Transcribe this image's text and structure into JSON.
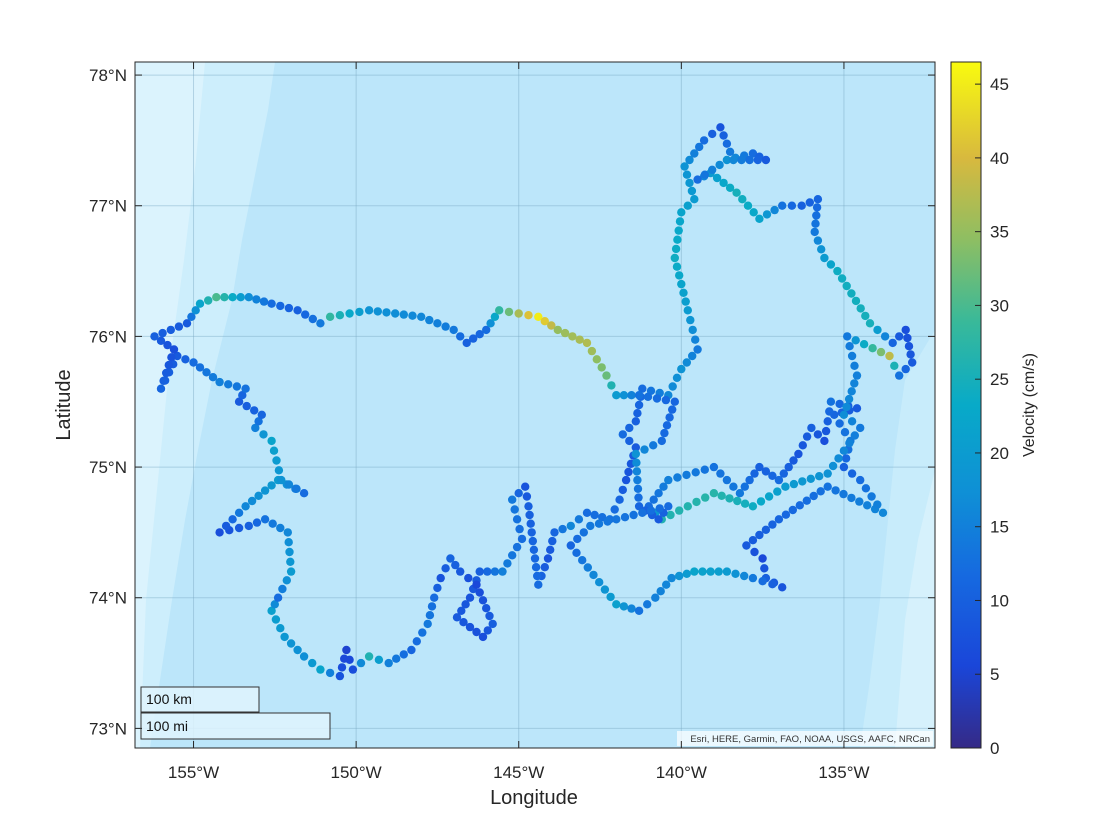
{
  "chart_data": {
    "type": "scatter",
    "map_type": "geoscatter",
    "xlabel": "Longitude",
    "ylabel": "Latitude",
    "xlim": [
      -156.8,
      -132.2
    ],
    "ylim": [
      72.85,
      78.1
    ],
    "x_ticks": [
      {
        "value": -155,
        "label": "155°W"
      },
      {
        "value": -150,
        "label": "150°W"
      },
      {
        "value": -145,
        "label": "145°W"
      },
      {
        "value": -140,
        "label": "140°W"
      },
      {
        "value": -135,
        "label": "135°W"
      }
    ],
    "y_ticks": [
      {
        "value": 73,
        "label": "73°N"
      },
      {
        "value": 74,
        "label": "74°N"
      },
      {
        "value": 75,
        "label": "75°N"
      },
      {
        "value": 76,
        "label": "76°N"
      },
      {
        "value": 77,
        "label": "77°N"
      },
      {
        "value": 78,
        "label": "78°N"
      }
    ],
    "grid": true,
    "colorbar": {
      "label": "Velocity (cm/s)",
      "limits": [
        0,
        46.5
      ],
      "colormap": "parula",
      "ticks": [
        0,
        5,
        10,
        15,
        20,
        25,
        30,
        35,
        40,
        45
      ]
    },
    "basemap_attribution": "Esri, HERE, Garmin, FAO, NOAA, USGS, AAFC, NRCan",
    "scale_bar": {
      "km_label": "100 km",
      "mi_label": "100 mi"
    },
    "track_waypoints": [
      [
        -136.9,
        74.08,
        8
      ],
      [
        -137.4,
        74.15,
        10
      ],
      [
        -137.5,
        74.3,
        6
      ],
      [
        -138.0,
        74.4,
        9
      ],
      [
        -137.0,
        74.6,
        11
      ],
      [
        -135.5,
        74.85,
        13
      ],
      [
        -133.8,
        74.65,
        16
      ],
      [
        -134.5,
        74.9,
        12
      ],
      [
        -135.0,
        75.0,
        10
      ],
      [
        -134.8,
        75.2,
        14
      ],
      [
        -135.3,
        75.4,
        11
      ],
      [
        -134.6,
        75.45,
        9
      ],
      [
        -135.4,
        75.5,
        13
      ],
      [
        -135.6,
        75.2,
        7
      ],
      [
        -136.0,
        75.3,
        10
      ],
      [
        -136.4,
        75.1,
        8
      ],
      [
        -137.0,
        74.9,
        12
      ],
      [
        -137.6,
        75.0,
        10
      ],
      [
        -138.2,
        74.8,
        14
      ],
      [
        -139.0,
        75.0,
        13
      ],
      [
        -140.4,
        74.9,
        15
      ],
      [
        -141.0,
        74.7,
        12
      ],
      [
        -140.6,
        74.6,
        26
      ],
      [
        -139.0,
        74.8,
        27
      ],
      [
        -137.8,
        74.7,
        24
      ],
      [
        -136.8,
        74.85,
        20
      ],
      [
        -135.5,
        74.95,
        18
      ],
      [
        -134.5,
        75.3,
        14
      ],
      [
        -135.0,
        75.4,
        17
      ],
      [
        -134.6,
        75.7,
        15
      ],
      [
        -134.9,
        76.0,
        14
      ],
      [
        -133.6,
        75.85,
        38
      ],
      [
        -133.3,
        75.7,
        13
      ],
      [
        -132.9,
        75.8,
        9
      ],
      [
        -133.1,
        76.05,
        7
      ],
      [
        -133.5,
        75.95,
        11
      ],
      [
        -134.2,
        76.1,
        25
      ],
      [
        -135.2,
        76.5,
        24
      ],
      [
        -135.6,
        76.6,
        20
      ],
      [
        -135.9,
        76.8,
        14
      ],
      [
        -135.8,
        77.05,
        11
      ],
      [
        -136.3,
        77.0,
        10
      ],
      [
        -136.9,
        77.0,
        13
      ],
      [
        -137.6,
        76.9,
        22
      ],
      [
        -138.3,
        77.1,
        25
      ],
      [
        -139.1,
        77.25,
        20
      ],
      [
        -139.5,
        77.2,
        12
      ],
      [
        -138.6,
        77.35,
        18
      ],
      [
        -137.8,
        77.4,
        12
      ],
      [
        -137.4,
        77.35,
        9
      ],
      [
        -138.4,
        77.35,
        16
      ],
      [
        -138.8,
        77.6,
        8
      ],
      [
        -139.3,
        77.5,
        12
      ],
      [
        -139.9,
        77.3,
        18
      ],
      [
        -139.6,
        77.05,
        20
      ],
      [
        -140.0,
        76.95,
        22
      ],
      [
        -140.2,
        76.6,
        24
      ],
      [
        -139.8,
        76.2,
        20
      ],
      [
        -139.5,
        75.9,
        14
      ],
      [
        -140.0,
        75.75,
        18
      ],
      [
        -140.4,
        75.55,
        16
      ],
      [
        -141.2,
        75.6,
        12
      ],
      [
        -141.4,
        75.35,
        10
      ],
      [
        -141.8,
        75.25,
        12
      ],
      [
        -141.4,
        75.15,
        9
      ],
      [
        -141.7,
        74.9,
        8
      ],
      [
        -141.9,
        74.75,
        11
      ],
      [
        -142.2,
        74.6,
        13
      ],
      [
        -142.9,
        74.65,
        12
      ],
      [
        -143.4,
        74.55,
        16
      ],
      [
        -143.9,
        74.5,
        11
      ],
      [
        -144.1,
        74.3,
        8
      ],
      [
        -144.4,
        74.1,
        12
      ],
      [
        -144.7,
        74.7,
        10
      ],
      [
        -144.8,
        74.85,
        8
      ],
      [
        -145.2,
        74.75,
        14
      ],
      [
        -144.9,
        74.45,
        12
      ],
      [
        -145.5,
        74.2,
        15
      ],
      [
        -146.2,
        74.2,
        10
      ],
      [
        -146.5,
        74.0,
        8
      ],
      [
        -146.9,
        73.85,
        9
      ],
      [
        -146.1,
        73.7,
        7
      ],
      [
        -145.8,
        73.8,
        10
      ],
      [
        -146.3,
        74.1,
        6
      ],
      [
        -146.8,
        74.2,
        9
      ],
      [
        -147.1,
        74.3,
        11
      ],
      [
        -147.4,
        74.15,
        8
      ],
      [
        -147.6,
        74.0,
        12
      ],
      [
        -147.8,
        73.8,
        14
      ],
      [
        -148.3,
        73.6,
        11
      ],
      [
        -149.0,
        73.5,
        15
      ],
      [
        -149.6,
        73.55,
        26
      ],
      [
        -150.1,
        73.45,
        7
      ],
      [
        -150.3,
        73.6,
        5
      ],
      [
        -150.5,
        73.4,
        8
      ],
      [
        -151.1,
        73.45,
        22
      ],
      [
        -151.6,
        73.55,
        17
      ],
      [
        -152.2,
        73.7,
        19
      ],
      [
        -152.6,
        73.9,
        21
      ],
      [
        -152.4,
        74.0,
        12
      ],
      [
        -152.0,
        74.2,
        20
      ],
      [
        -152.1,
        74.5,
        16
      ],
      [
        -152.8,
        74.6,
        13
      ],
      [
        -153.3,
        74.55,
        10
      ],
      [
        -154.2,
        74.5,
        7
      ],
      [
        -153.4,
        74.7,
        16
      ],
      [
        -152.4,
        74.9,
        20
      ],
      [
        -151.6,
        74.8,
        12
      ],
      [
        -152.3,
        74.9,
        18
      ],
      [
        -152.6,
        75.2,
        22
      ],
      [
        -153.1,
        75.3,
        15
      ],
      [
        -152.9,
        75.4,
        11
      ],
      [
        -153.6,
        75.5,
        9
      ],
      [
        -153.4,
        75.6,
        13
      ],
      [
        -154.2,
        75.65,
        15
      ],
      [
        -155.0,
        75.8,
        12
      ],
      [
        -155.5,
        75.85,
        9
      ],
      [
        -156.0,
        75.6,
        11
      ],
      [
        -155.6,
        75.9,
        7
      ],
      [
        -156.2,
        76.0,
        10
      ],
      [
        -155.2,
        76.1,
        9
      ],
      [
        -154.8,
        76.25,
        22
      ],
      [
        -154.3,
        76.3,
        30
      ],
      [
        -153.3,
        76.3,
        17
      ],
      [
        -152.6,
        76.25,
        12
      ],
      [
        -151.8,
        76.2,
        10
      ],
      [
        -151.1,
        76.1,
        14
      ],
      [
        -150.8,
        76.15,
        28
      ],
      [
        -149.6,
        76.2,
        18
      ],
      [
        -148.0,
        76.15,
        16
      ],
      [
        -147.0,
        76.05,
        14
      ],
      [
        -146.6,
        75.95,
        10
      ],
      [
        -146.0,
        76.05,
        12
      ],
      [
        -145.6,
        76.2,
        28
      ],
      [
        -144.4,
        76.15,
        45
      ],
      [
        -143.8,
        76.05,
        35
      ],
      [
        -142.9,
        75.95,
        37
      ],
      [
        -142.3,
        75.7,
        32
      ],
      [
        -142.0,
        75.55,
        20
      ],
      [
        -141.3,
        75.55,
        13
      ],
      [
        -140.2,
        75.5,
        11
      ],
      [
        -140.6,
        75.2,
        12
      ],
      [
        -141.4,
        75.1,
        18
      ],
      [
        -141.3,
        74.7,
        11
      ],
      [
        -140.7,
        74.6,
        9
      ],
      [
        -140.4,
        74.7,
        12
      ],
      [
        -142.8,
        74.55,
        14
      ],
      [
        -143.4,
        74.4,
        11
      ],
      [
        -142.0,
        73.95,
        21
      ],
      [
        -141.3,
        73.9,
        13
      ],
      [
        -140.8,
        74.0,
        15
      ],
      [
        -140.3,
        74.15,
        16
      ],
      [
        -139.6,
        74.2,
        22
      ],
      [
        -138.6,
        74.2,
        20
      ],
      [
        -137.8,
        74.15,
        14
      ],
      [
        -136.9,
        74.08,
        8
      ]
    ]
  }
}
